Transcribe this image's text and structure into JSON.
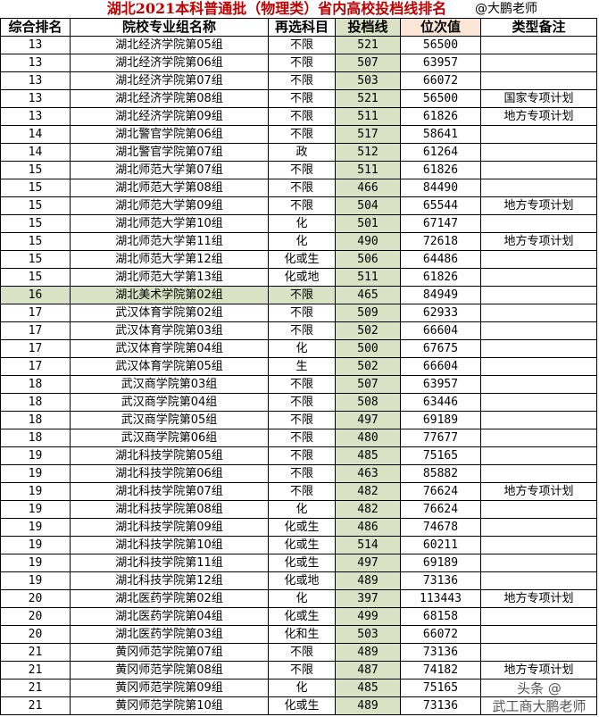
{
  "title": "湖北2021本科普通批（物理类）省内高校投档线排名",
  "author": "@大鹏老师",
  "watermark": "头条 @武工商大鹏老师",
  "colors": {
    "title": "#c00000",
    "score_column": "#d9e2c4",
    "rank_value_header": "#fbe5d6",
    "highlight_row": "#d9e2c4"
  },
  "headers": [
    "综合排名",
    "院校专业组名称",
    "再选科目",
    "投档线",
    "位次值",
    "类型备注"
  ],
  "rows": [
    [
      "13",
      "湖北经济学院第05组",
      "不限",
      "521",
      "56500",
      ""
    ],
    [
      "13",
      "湖北经济学院第06组",
      "不限",
      "507",
      "63957",
      ""
    ],
    [
      "13",
      "湖北经济学院第07组",
      "不限",
      "503",
      "66072",
      ""
    ],
    [
      "13",
      "湖北经济学院第08组",
      "不限",
      "521",
      "56500",
      "国家专项计划"
    ],
    [
      "13",
      "湖北经济学院第09组",
      "不限",
      "511",
      "61826",
      "地方专项计划"
    ],
    [
      "14",
      "湖北警官学院第06组",
      "不限",
      "517",
      "58641",
      ""
    ],
    [
      "14",
      "湖北警官学院第07组",
      "政",
      "512",
      "61264",
      ""
    ],
    [
      "15",
      "湖北师范大学第07组",
      "不限",
      "511",
      "61826",
      ""
    ],
    [
      "15",
      "湖北师范大学第08组",
      "不限",
      "466",
      "84490",
      ""
    ],
    [
      "15",
      "湖北师范大学第09组",
      "不限",
      "504",
      "65544",
      "地方专项计划"
    ],
    [
      "15",
      "湖北师范大学第10组",
      "化",
      "501",
      "67147",
      ""
    ],
    [
      "15",
      "湖北师范大学第11组",
      "化",
      "490",
      "72618",
      "地方专项计划"
    ],
    [
      "15",
      "湖北师范大学第12组",
      "化或生",
      "506",
      "64486",
      ""
    ],
    [
      "15",
      "湖北师范大学第13组",
      "化或地",
      "511",
      "61826",
      ""
    ],
    [
      "16",
      "湖北美术学院第02组",
      "不限",
      "465",
      "84949",
      ""
    ],
    [
      "17",
      "武汉体育学院第02组",
      "不限",
      "509",
      "62933",
      ""
    ],
    [
      "17",
      "武汉体育学院第03组",
      "不限",
      "502",
      "66604",
      ""
    ],
    [
      "17",
      "武汉体育学院第04组",
      "化",
      "500",
      "67675",
      ""
    ],
    [
      "17",
      "武汉体育学院第05组",
      "生",
      "502",
      "66604",
      ""
    ],
    [
      "18",
      "武汉商学院第03组",
      "不限",
      "507",
      "63957",
      ""
    ],
    [
      "18",
      "武汉商学院第04组",
      "不限",
      "508",
      "63446",
      ""
    ],
    [
      "18",
      "武汉商学院第05组",
      "不限",
      "497",
      "69189",
      ""
    ],
    [
      "18",
      "武汉商学院第06组",
      "不限",
      "480",
      "77677",
      ""
    ],
    [
      "19",
      "湖北科技学院第05组",
      "不限",
      "485",
      "75165",
      ""
    ],
    [
      "19",
      "湖北科技学院第06组",
      "不限",
      "463",
      "85882",
      ""
    ],
    [
      "19",
      "湖北科技学院第07组",
      "不限",
      "482",
      "76624",
      "地方专项计划"
    ],
    [
      "19",
      "湖北科技学院第08组",
      "化",
      "482",
      "76624",
      ""
    ],
    [
      "19",
      "湖北科技学院第09组",
      "化或生",
      "486",
      "74678",
      ""
    ],
    [
      "19",
      "湖北科技学院第10组",
      "化或生",
      "514",
      "60211",
      ""
    ],
    [
      "19",
      "湖北科技学院第11组",
      "化或生",
      "497",
      "69189",
      ""
    ],
    [
      "19",
      "湖北科技学院第12组",
      "化或地",
      "489",
      "73136",
      ""
    ],
    [
      "20",
      "湖北医药学院第02组",
      "化",
      "397",
      "113443",
      "地方专项计划"
    ],
    [
      "20",
      "湖北医药学院第04组",
      "化或生",
      "499",
      "68158",
      ""
    ],
    [
      "20",
      "湖北医药学院第03组",
      "化和生",
      "503",
      "66072",
      ""
    ],
    [
      "21",
      "黄冈师范学院第07组",
      "不限",
      "489",
      "73136",
      ""
    ],
    [
      "21",
      "黄冈师范学院第08组",
      "不限",
      "487",
      "74182",
      "地方专项计划"
    ],
    [
      "21",
      "黄冈师范学院第09组",
      "化",
      "485",
      "75165",
      ""
    ],
    [
      "21",
      "黄冈师范学院第10组",
      "化或生",
      "489",
      "73136",
      ""
    ]
  ],
  "highlighted_row_rank": "16"
}
